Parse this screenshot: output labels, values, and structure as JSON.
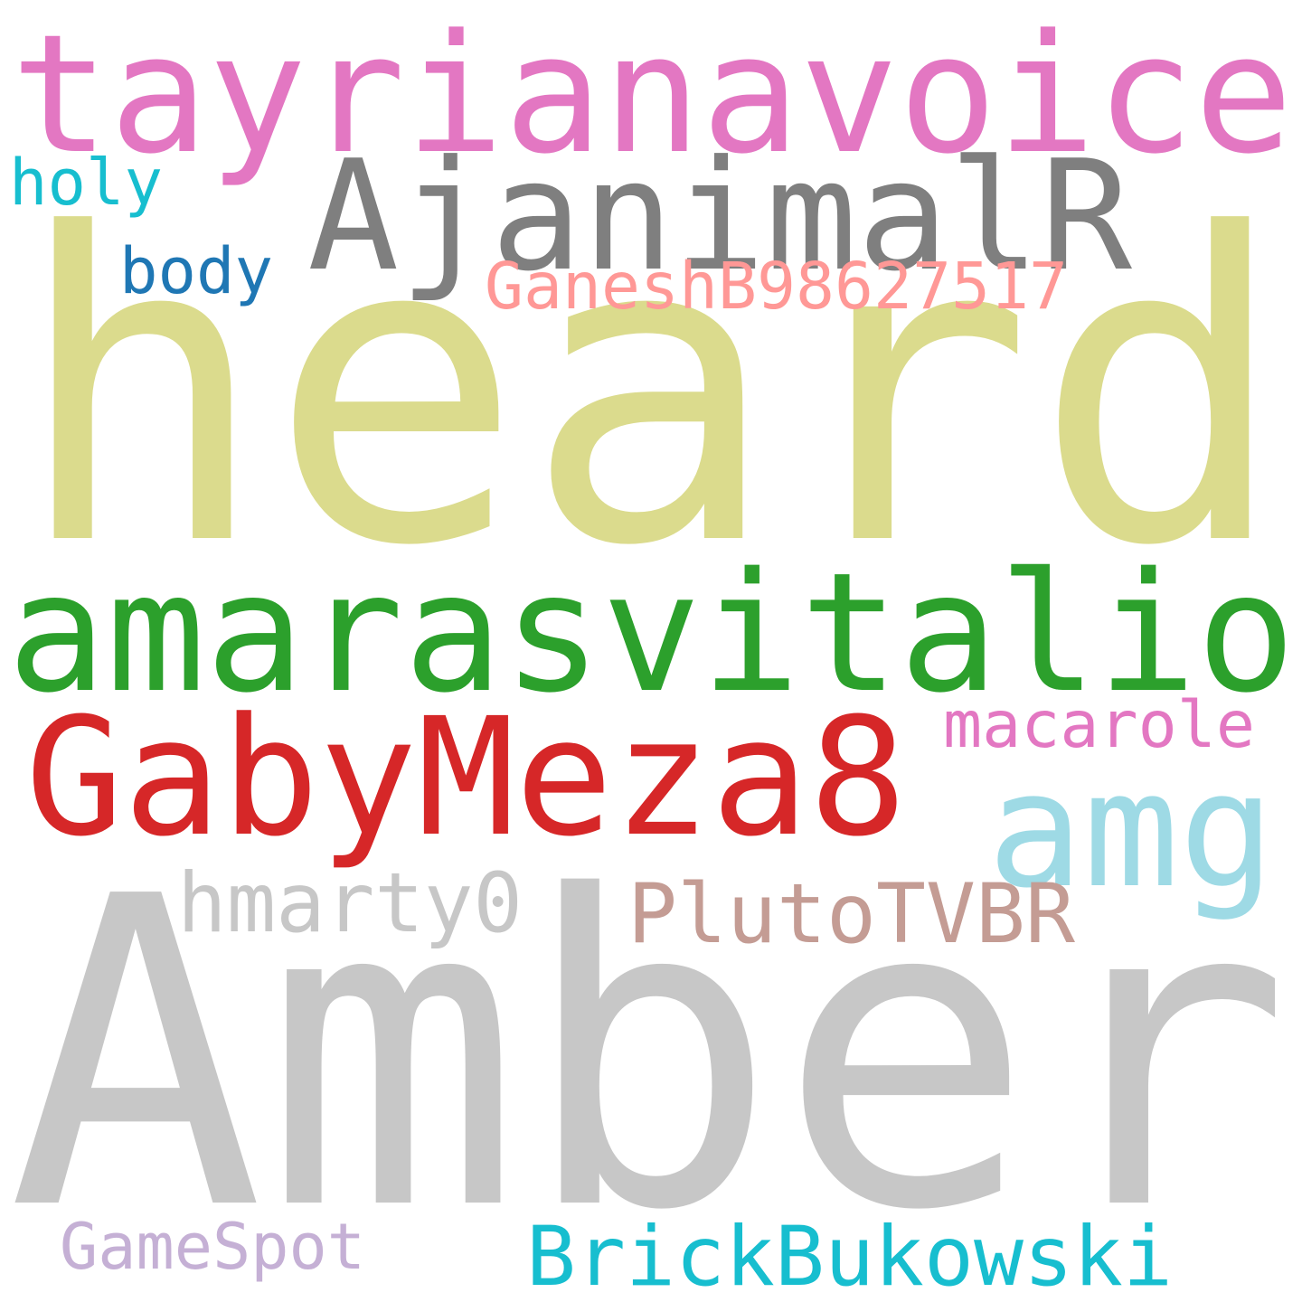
{
  "words": [
    {
      "text": "heard",
      "color": "#dbdb8d"
    },
    {
      "text": "Amber",
      "color": "#c7c7c7"
    },
    {
      "text": "amarasvitalio",
      "color": "#2ca02c"
    },
    {
      "text": "tayrianavoice",
      "color": "#e377c2"
    },
    {
      "text": "GabyMeza8",
      "color": "#d62728"
    },
    {
      "text": "AjanimalR",
      "color": "#7f7f7f"
    },
    {
      "text": "amg",
      "color": "#9edae5"
    },
    {
      "text": "PlutoTVBR",
      "color": "#c49c94"
    },
    {
      "text": "hmarty0",
      "color": "#c7c7c7"
    },
    {
      "text": "BrickBukowski",
      "color": "#17becf"
    },
    {
      "text": "GaneshB98627517",
      "color": "#ff9896"
    },
    {
      "text": "macarole",
      "color": "#e377c2"
    },
    {
      "text": "GameSpot",
      "color": "#c5b0d5"
    },
    {
      "text": "body",
      "color": "#1f77b4"
    },
    {
      "text": "holy",
      "color": "#17becf"
    }
  ]
}
